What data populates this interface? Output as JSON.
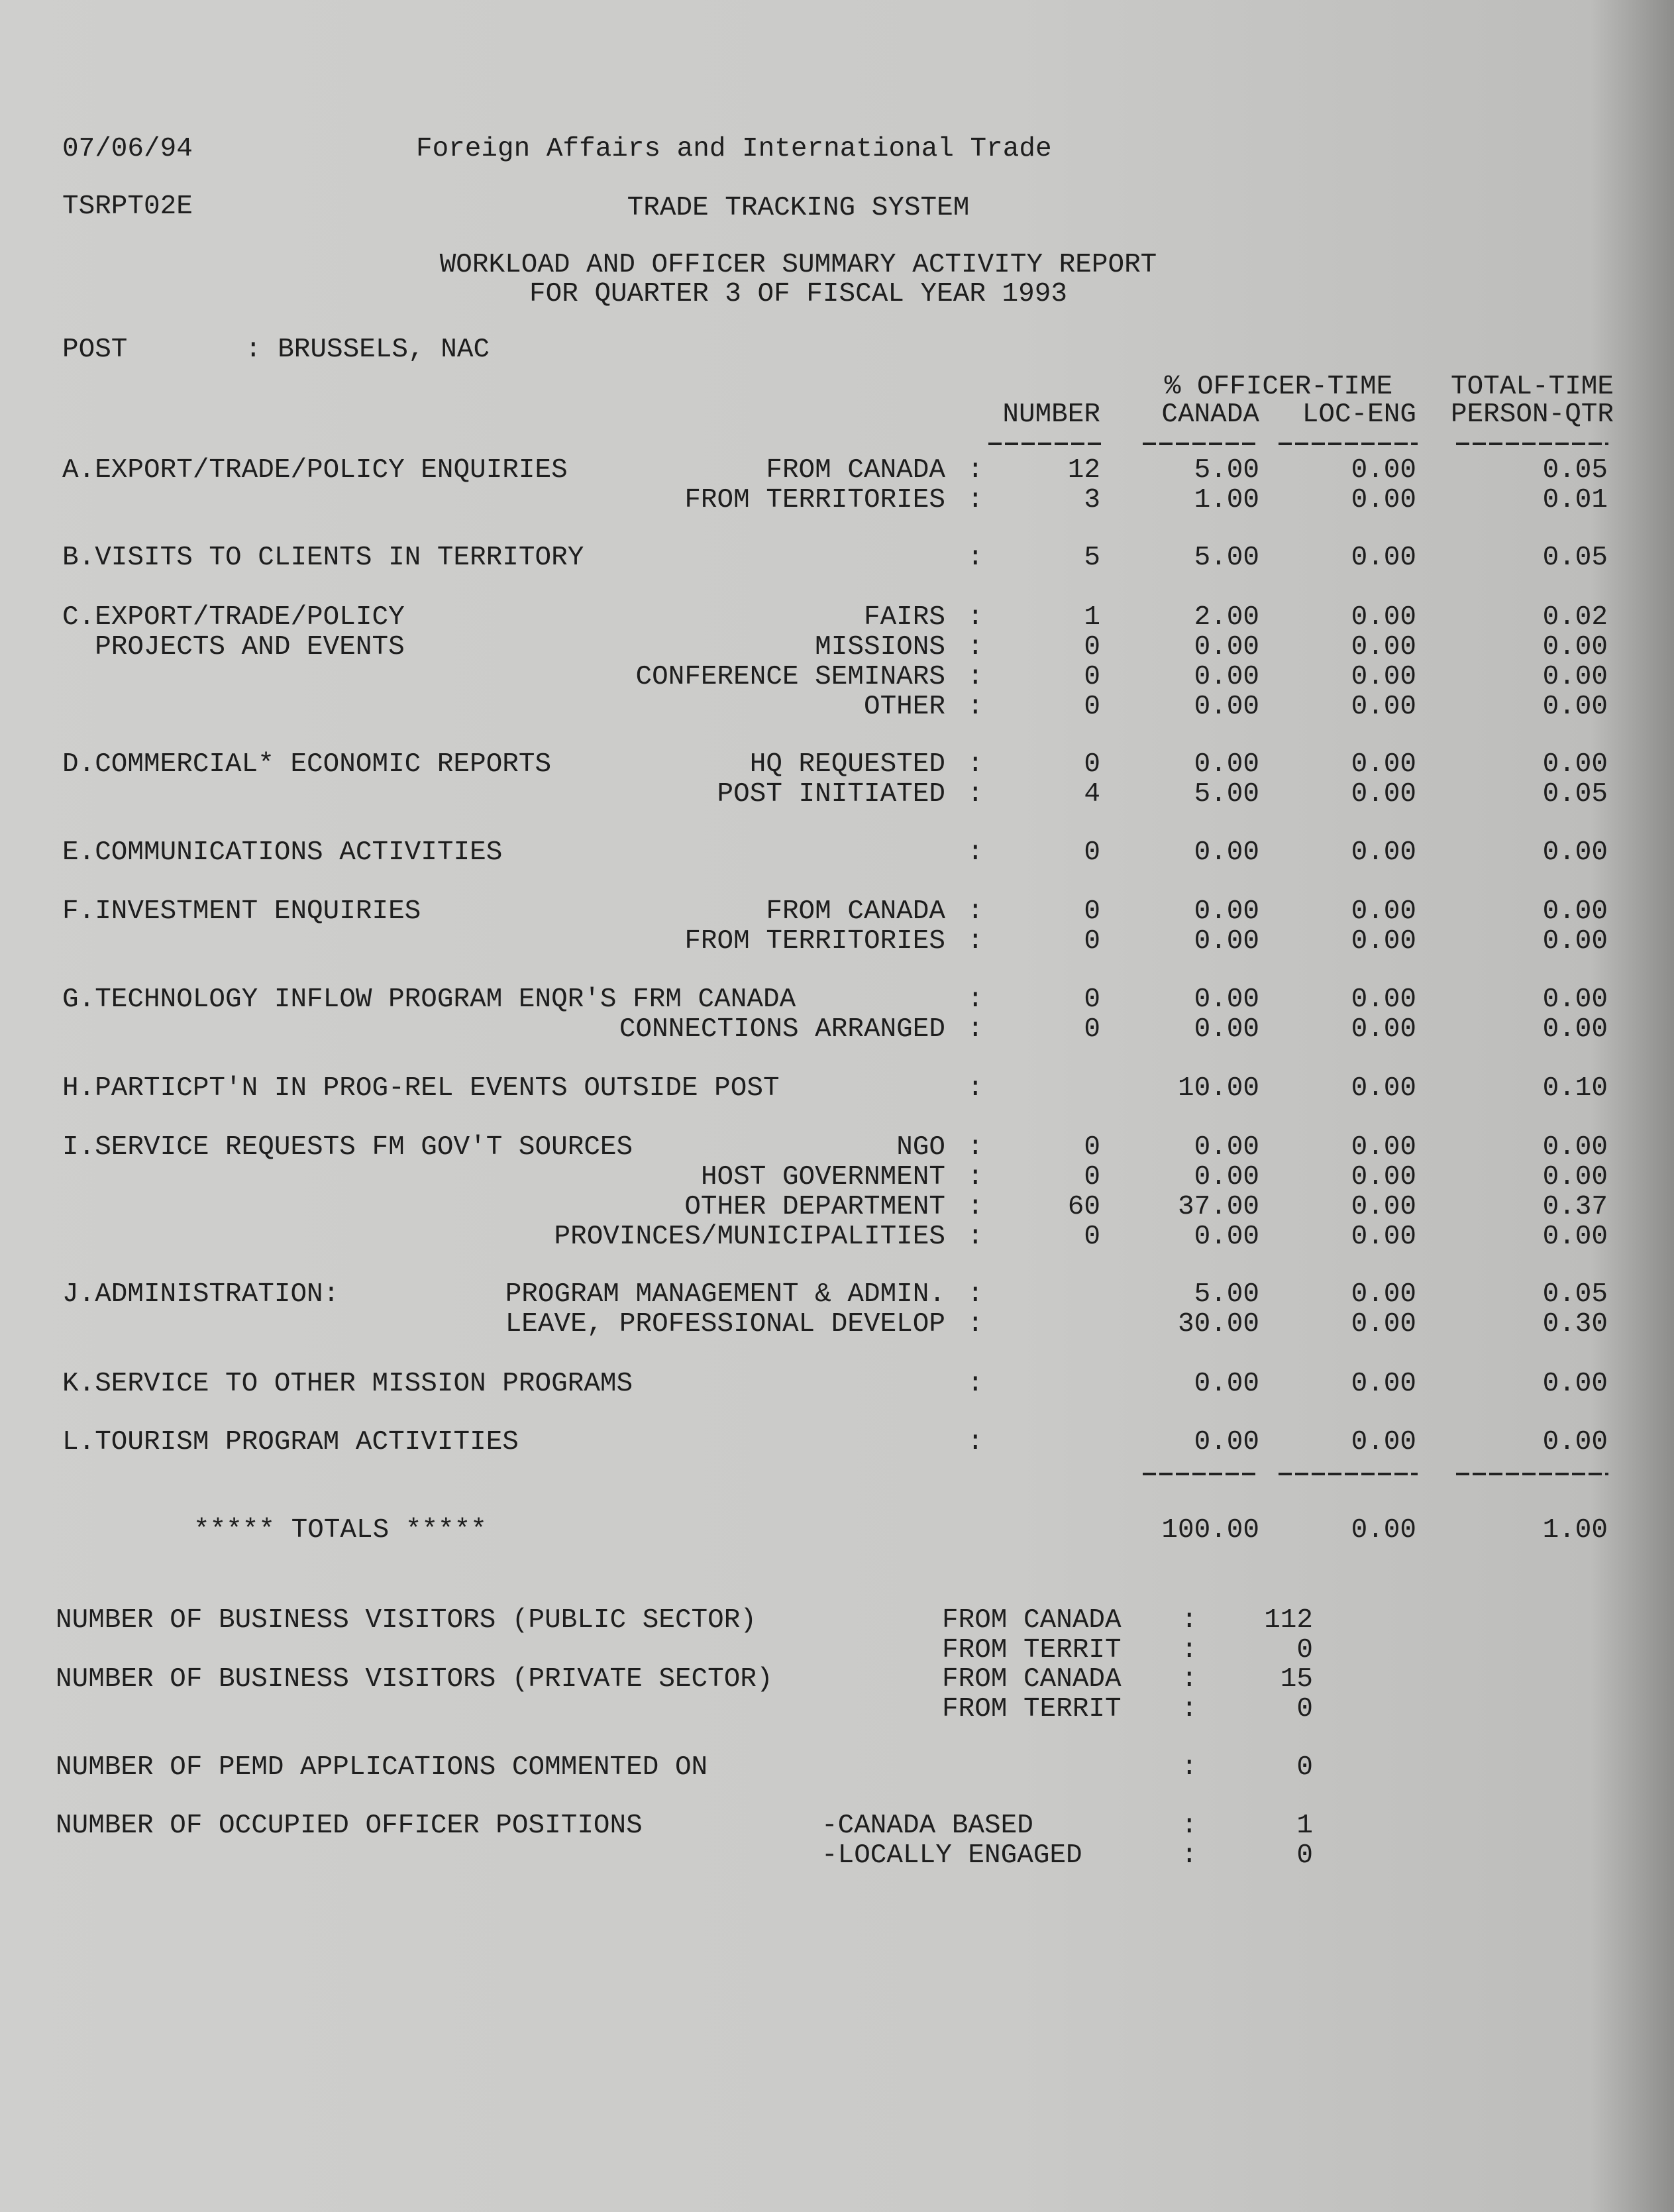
{
  "header": {
    "date": "07/06/94",
    "department": "Foreign Affairs and International Trade",
    "report_id": "TSRPT02E",
    "system": "TRADE TRACKING SYSTEM",
    "title_line1": "WORKLOAD AND OFFICER SUMMARY ACTIVITY REPORT",
    "title_line2": "FOR QUARTER 3 OF FISCAL YEAR 1993",
    "post_label": "POST",
    "post_value": ": BRUSSELS, NAC"
  },
  "columns": {
    "number": "NUMBER",
    "officer_time": "% OFFICER-TIME",
    "canada": "CANADA",
    "loc_eng": "LOC-ENG",
    "total_time": "TOTAL-TIME",
    "person_qtr": "PERSON-QTR"
  },
  "rows": [
    {
      "label": "A.EXPORT/TRADE/POLICY ENQUIRIES",
      "sub": "FROM CANADA",
      "number": "12",
      "canada": "5.00",
      "loc_eng": "0.00",
      "total": "0.05"
    },
    {
      "label": "",
      "sub": "FROM TERRITORIES",
      "number": "3",
      "canada": "1.00",
      "loc_eng": "0.00",
      "total": "0.01"
    },
    {
      "label": "B.VISITS TO CLIENTS IN TERRITORY",
      "sub": "",
      "number": "5",
      "canada": "5.00",
      "loc_eng": "0.00",
      "total": "0.05"
    },
    {
      "label": "C.EXPORT/TRADE/POLICY",
      "sub": "FAIRS",
      "number": "1",
      "canada": "2.00",
      "loc_eng": "0.00",
      "total": "0.02"
    },
    {
      "label": "  PROJECTS AND EVENTS",
      "sub": "MISSIONS",
      "number": "0",
      "canada": "0.00",
      "loc_eng": "0.00",
      "total": "0.00"
    },
    {
      "label": "",
      "sub": "CONFERENCE SEMINARS",
      "number": "0",
      "canada": "0.00",
      "loc_eng": "0.00",
      "total": "0.00"
    },
    {
      "label": "",
      "sub": "OTHER",
      "number": "0",
      "canada": "0.00",
      "loc_eng": "0.00",
      "total": "0.00"
    },
    {
      "label": "D.COMMERCIAL* ECONOMIC REPORTS",
      "sub": "HQ REQUESTED",
      "number": "0",
      "canada": "0.00",
      "loc_eng": "0.00",
      "total": "0.00"
    },
    {
      "label": "",
      "sub": "POST INITIATED",
      "number": "4",
      "canada": "5.00",
      "loc_eng": "0.00",
      "total": "0.05"
    },
    {
      "label": "E.COMMUNICATIONS ACTIVITIES",
      "sub": "",
      "number": "0",
      "canada": "0.00",
      "loc_eng": "0.00",
      "total": "0.00"
    },
    {
      "label": "F.INVESTMENT ENQUIRIES",
      "sub": "FROM CANADA",
      "number": "0",
      "canada": "0.00",
      "loc_eng": "0.00",
      "total": "0.00"
    },
    {
      "label": "",
      "sub": "FROM TERRITORIES",
      "number": "0",
      "canada": "0.00",
      "loc_eng": "0.00",
      "total": "0.00"
    },
    {
      "label": "G.TECHNOLOGY INFLOW PROGRAM ENQR'S FRM CANADA",
      "sub": "",
      "number": "0",
      "canada": "0.00",
      "loc_eng": "0.00",
      "total": "0.00"
    },
    {
      "label": "",
      "sub": "CONNECTIONS ARRANGED",
      "number": "0",
      "canada": "0.00",
      "loc_eng": "0.00",
      "total": "0.00"
    },
    {
      "label": "H.PARTICPT'N IN PROG-REL EVENTS OUTSIDE POST",
      "sub": "",
      "number": "",
      "canada": "10.00",
      "loc_eng": "0.00",
      "total": "0.10"
    },
    {
      "label": "I.SERVICE REQUESTS FM GOV'T SOURCES",
      "sub": "NGO",
      "number": "0",
      "canada": "0.00",
      "loc_eng": "0.00",
      "total": "0.00"
    },
    {
      "label": "",
      "sub": "HOST GOVERNMENT",
      "number": "0",
      "canada": "0.00",
      "loc_eng": "0.00",
      "total": "0.00"
    },
    {
      "label": "",
      "sub": "OTHER DEPARTMENT",
      "number": "60",
      "canada": "37.00",
      "loc_eng": "0.00",
      "total": "0.37"
    },
    {
      "label": "",
      "sub": "PROVINCES/MUNICIPALITIES",
      "number": "0",
      "canada": "0.00",
      "loc_eng": "0.00",
      "total": "0.00"
    },
    {
      "label": "J.ADMINISTRATION:",
      "sub": "PROGRAM MANAGEMENT & ADMIN.",
      "number": "",
      "canada": "5.00",
      "loc_eng": "0.00",
      "total": "0.05"
    },
    {
      "label": "",
      "sub": "LEAVE, PROFESSIONAL DEVELOP",
      "number": "",
      "canada": "30.00",
      "loc_eng": "0.00",
      "total": "0.30"
    },
    {
      "label": "K.SERVICE TO OTHER MISSION PROGRAMS",
      "sub": "",
      "number": "",
      "canada": "0.00",
      "loc_eng": "0.00",
      "total": "0.00"
    },
    {
      "label": "L.TOURISM PROGRAM ACTIVITIES",
      "sub": "",
      "number": "",
      "canada": "0.00",
      "loc_eng": "0.00",
      "total": "0.00"
    }
  ],
  "totals": {
    "label": "***** TOTALS *****",
    "canada": "100.00",
    "loc_eng": "0.00",
    "total": "1.00"
  },
  "summary": [
    {
      "label": "NUMBER OF BUSINESS VISITORS (PUBLIC SECTOR)",
      "sub": "FROM CANADA",
      "value": "112"
    },
    {
      "label": "",
      "sub": "FROM TERRIT",
      "value": "0"
    },
    {
      "label": "NUMBER OF BUSINESS VISITORS (PRIVATE SECTOR)",
      "sub": "FROM CANADA",
      "value": "15"
    },
    {
      "label": "",
      "sub": "FROM TERRIT",
      "value": "0"
    },
    {
      "label": "NUMBER OF PEMD APPLICATIONS COMMENTED ON",
      "sub": "",
      "value": "0"
    },
    {
      "label": "NUMBER OF OCCUPIED OFFICER POSITIONS",
      "sub": "-CANADA BASED",
      "value": "1"
    },
    {
      "label": "",
      "sub": "-LOCALLY ENGAGED",
      "value": "0"
    }
  ]
}
